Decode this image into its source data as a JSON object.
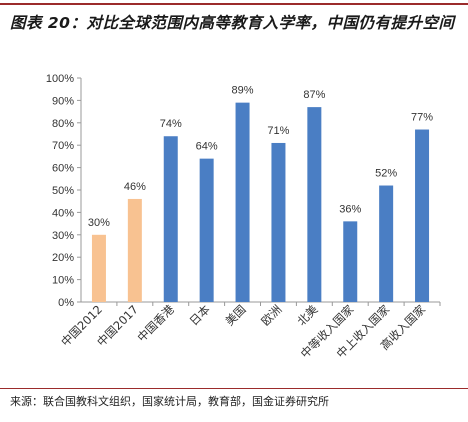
{
  "header": {
    "title": "图表 20：对比全球范围内高等教育入学率，中国仍有提升空间"
  },
  "chart_data": {
    "type": "bar",
    "categories": [
      "中国2012",
      "中国2017",
      "中国香港",
      "日本",
      "美国",
      "欧洲",
      "北美",
      "中等收入国家",
      "中上收入国家",
      "高收入国家"
    ],
    "values": [
      30,
      46,
      74,
      64,
      89,
      71,
      87,
      36,
      52,
      77
    ],
    "data_labels": [
      "30%",
      "46%",
      "74%",
      "64%",
      "89%",
      "71%",
      "87%",
      "36%",
      "52%",
      "77%"
    ],
    "bar_colors": [
      "#f8c291",
      "#f8c291",
      "#4a7ec4",
      "#4a7ec4",
      "#4a7ec4",
      "#4a7ec4",
      "#4a7ec4",
      "#4a7ec4",
      "#4a7ec4",
      "#4a7ec4"
    ],
    "yticks": [
      "0%",
      "10%",
      "20%",
      "30%",
      "40%",
      "50%",
      "60%",
      "70%",
      "80%",
      "90%",
      "100%"
    ],
    "ylim": [
      0,
      100
    ],
    "grid": false,
    "legend": "none"
  },
  "footer": {
    "source": "来源：联合国教科文组织，国家统计局，教育部，国金证券研究所"
  },
  "colors": {
    "accent_rule": "#9b2b2b",
    "axis": "#999999"
  }
}
